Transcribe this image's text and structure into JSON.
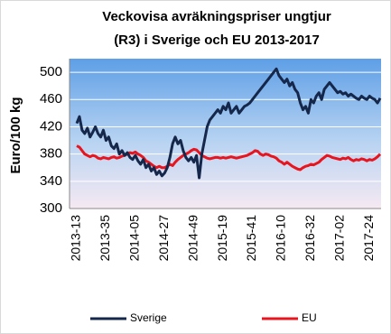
{
  "chart_data": {
    "type": "line",
    "title": [
      "Veckovisa avräkningspriser ungtjur",
      "(R3) i Sverige och EU 2013-2017"
    ],
    "y_label": "Euro/100 kg",
    "categories": [
      "2013-13",
      null,
      null,
      null,
      null,
      null,
      null,
      null,
      null,
      null,
      null,
      "2013-35",
      null,
      null,
      null,
      null,
      null,
      null,
      null,
      null,
      null,
      null,
      "2014-05",
      null,
      null,
      null,
      null,
      null,
      null,
      null,
      null,
      null,
      null,
      "2014-27",
      null,
      null,
      null,
      null,
      null,
      null,
      null,
      null,
      null,
      null,
      "2014-49",
      null,
      null,
      null,
      null,
      null,
      null,
      null,
      null,
      null,
      null,
      "2015-19",
      null,
      null,
      null,
      null,
      null,
      null,
      null,
      null,
      null,
      null,
      "2015-41",
      null,
      null,
      null,
      null,
      null,
      null,
      null,
      null,
      null,
      null,
      "2016-10",
      null,
      null,
      null,
      null,
      null,
      null,
      null,
      null,
      null,
      null,
      "2016-32",
      null,
      null,
      null,
      null,
      null,
      null,
      null,
      null,
      null,
      null,
      "2017-02",
      null,
      null,
      null,
      null,
      null,
      null,
      null,
      null,
      null,
      null,
      "2017-24",
      null,
      null,
      null,
      null
    ],
    "series": [
      {
        "name": "Sverige",
        "color": "#15274a",
        "values": [
          425,
          435,
          415,
          410,
          418,
          405,
          412,
          420,
          410,
          405,
          415,
          400,
          405,
          392,
          388,
          395,
          380,
          385,
          378,
          382,
          375,
          372,
          378,
          370,
          365,
          372,
          360,
          365,
          355,
          360,
          350,
          355,
          348,
          352,
          360,
          375,
          395,
          405,
          395,
          400,
          385,
          375,
          370,
          375,
          368,
          378,
          345,
          380,
          400,
          420,
          430,
          435,
          440,
          445,
          440,
          450,
          445,
          455,
          440,
          445,
          450,
          440,
          445,
          450,
          452,
          455,
          460,
          465,
          470,
          475,
          480,
          485,
          490,
          495,
          500,
          505,
          495,
          490,
          485,
          490,
          480,
          485,
          475,
          470,
          455,
          445,
          450,
          440,
          460,
          455,
          465,
          470,
          460,
          475,
          480,
          485,
          480,
          475,
          470,
          472,
          468,
          470,
          465,
          468,
          465,
          462,
          460,
          465,
          462,
          460,
          465,
          462,
          460,
          455,
          462
        ]
      },
      {
        "name": "EU",
        "color": "#e8141e",
        "values": [
          392,
          390,
          385,
          380,
          378,
          376,
          378,
          377,
          374,
          373,
          375,
          374,
          373,
          375,
          376,
          374,
          375,
          377,
          378,
          380,
          382,
          381,
          383,
          380,
          378,
          375,
          370,
          368,
          365,
          362,
          360,
          362,
          360,
          360,
          362,
          365,
          363,
          368,
          372,
          375,
          378,
          380,
          382,
          385,
          387,
          386,
          382,
          378,
          376,
          374,
          373,
          374,
          375,
          375,
          374,
          375,
          374,
          375,
          376,
          375,
          374,
          375,
          376,
          377,
          378,
          380,
          382,
          385,
          384,
          380,
          378,
          380,
          379,
          377,
          376,
          374,
          370,
          368,
          365,
          368,
          365,
          362,
          360,
          358,
          357,
          360,
          362,
          363,
          365,
          364,
          366,
          368,
          372,
          375,
          378,
          377,
          375,
          374,
          373,
          372,
          374,
          373,
          375,
          372,
          370,
          372,
          371,
          373,
          372,
          370,
          372,
          371,
          373,
          376,
          380
        ]
      }
    ],
    "ylim": [
      300,
      520
    ],
    "yticks": [
      300,
      340,
      380,
      420,
      460,
      500
    ],
    "grid": true
  }
}
